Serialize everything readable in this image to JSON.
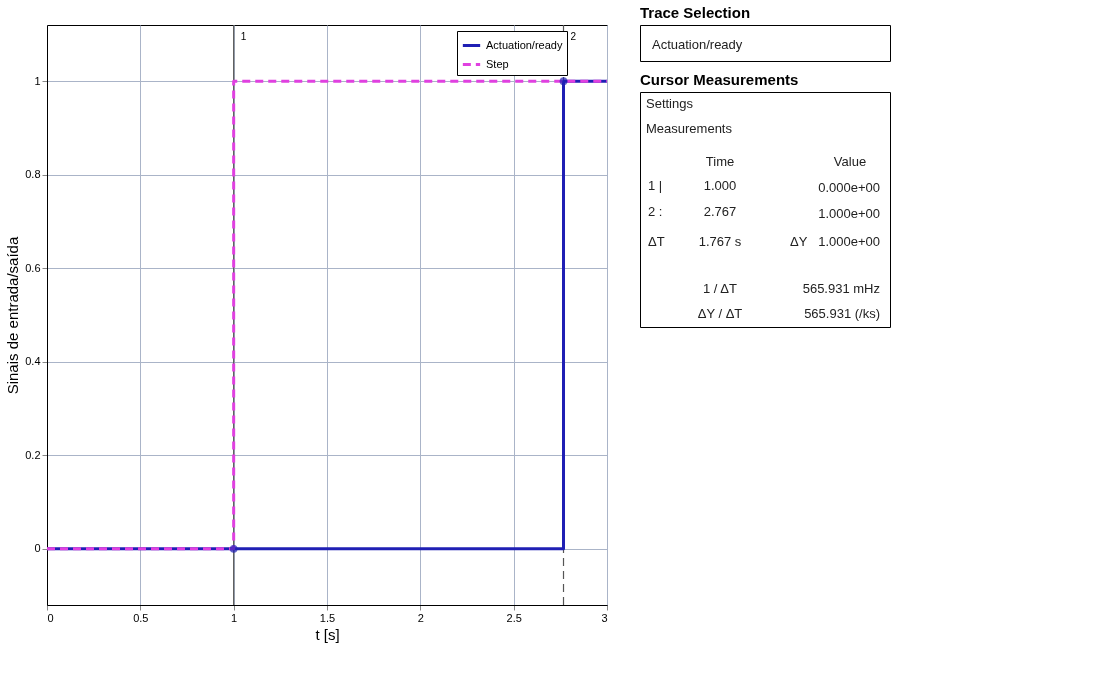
{
  "chart_data": [
    {
      "type": "step",
      "xlabel": "t [s]",
      "ylabel": "Sinais de entrada/saída",
      "xlim": [
        0,
        3
      ],
      "ylim": [
        -0.12,
        1.12
      ],
      "xticks": [
        0,
        0.5,
        1,
        1.5,
        2,
        2.5,
        3
      ],
      "yticks": [
        0,
        0.2,
        0.4,
        0.6,
        0.8,
        1
      ],
      "grid": true,
      "legend": "top right",
      "series": [
        {
          "name": "Actuation/ready",
          "color": "#1f1fb4",
          "x": [
            0,
            2.767,
            3
          ],
          "values": [
            0,
            1,
            1
          ],
          "line_style": "solid"
        },
        {
          "name": "Step",
          "color": "#e040e0",
          "x": [
            0,
            1,
            3
          ],
          "values": [
            0,
            1,
            1
          ],
          "line_style": "dashed"
        },
        {
          "type": "scatter",
          "color": "#1f1fb4",
          "x": [
            1,
            2.767
          ],
          "values": [
            0,
            1
          ],
          "marker": "circle"
        }
      ],
      "ref_lines": [
        {
          "axis": "x",
          "value": 1,
          "color": "#555555",
          "line_style": "solid"
        },
        {
          "axis": "x",
          "value": 2.767,
          "color": "#555555",
          "line_style": "dashed"
        }
      ],
      "annotations": [
        {
          "text": "1",
          "x": 1,
          "y": 1.12
        },
        {
          "text": "2",
          "x": 2.767,
          "y": 1.12
        }
      ]
    },
    {
      "type": "other",
      "title": "Trace Selection",
      "annotations": [
        "Actuation/ready"
      ]
    },
    {
      "type": "other",
      "title": "Cursor Measurements",
      "annotations": [
        "Settings",
        "Measurements",
        "Time",
        "Value",
        "1 |",
        "1.000",
        "0.000e+00",
        "2 :",
        "2.767",
        "1.000e+00",
        "ΔT",
        "1.767 s",
        "ΔY",
        "1.000e+00",
        "1 / ΔT",
        "565.931 mHz",
        "ΔY / ΔT",
        "565.931 (/ks)"
      ]
    }
  ]
}
